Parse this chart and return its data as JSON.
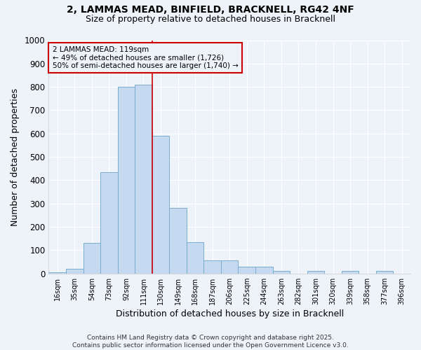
{
  "title_line1": "2, LAMMAS MEAD, BINFIELD, BRACKNELL, RG42 4NF",
  "title_line2": "Size of property relative to detached houses in Bracknell",
  "xlabel": "Distribution of detached houses by size in Bracknell",
  "ylabel": "Number of detached properties",
  "categories": [
    "16sqm",
    "35sqm",
    "54sqm",
    "73sqm",
    "92sqm",
    "111sqm",
    "130sqm",
    "149sqm",
    "168sqm",
    "187sqm",
    "206sqm",
    "225sqm",
    "244sqm",
    "263sqm",
    "282sqm",
    "301sqm",
    "320sqm",
    "339sqm",
    "358sqm",
    "377sqm",
    "396sqm"
  ],
  "values": [
    5,
    20,
    130,
    435,
    800,
    810,
    590,
    280,
    135,
    55,
    55,
    30,
    30,
    10,
    0,
    10,
    0,
    10,
    0,
    10,
    0
  ],
  "bar_color": "#c5d9f0",
  "bar_edge_color": "#7aadce",
  "vline_x": 5.5,
  "vline_color": "#cc0000",
  "annotation_text": "2 LAMMAS MEAD: 119sqm\n← 49% of detached houses are smaller (1,726)\n50% of semi-detached houses are larger (1,740) →",
  "annotation_box_color": "#cc0000",
  "annotation_text_color": "#000000",
  "ylim": [
    0,
    1000
  ],
  "yticks": [
    0,
    100,
    200,
    300,
    400,
    500,
    600,
    700,
    800,
    900,
    1000
  ],
  "background_color": "#eef2f9",
  "grid_color": "#ffffff",
  "footnote": "Contains HM Land Registry data © Crown copyright and database right 2025.\nContains public sector information licensed under the Open Government Licence v3.0."
}
